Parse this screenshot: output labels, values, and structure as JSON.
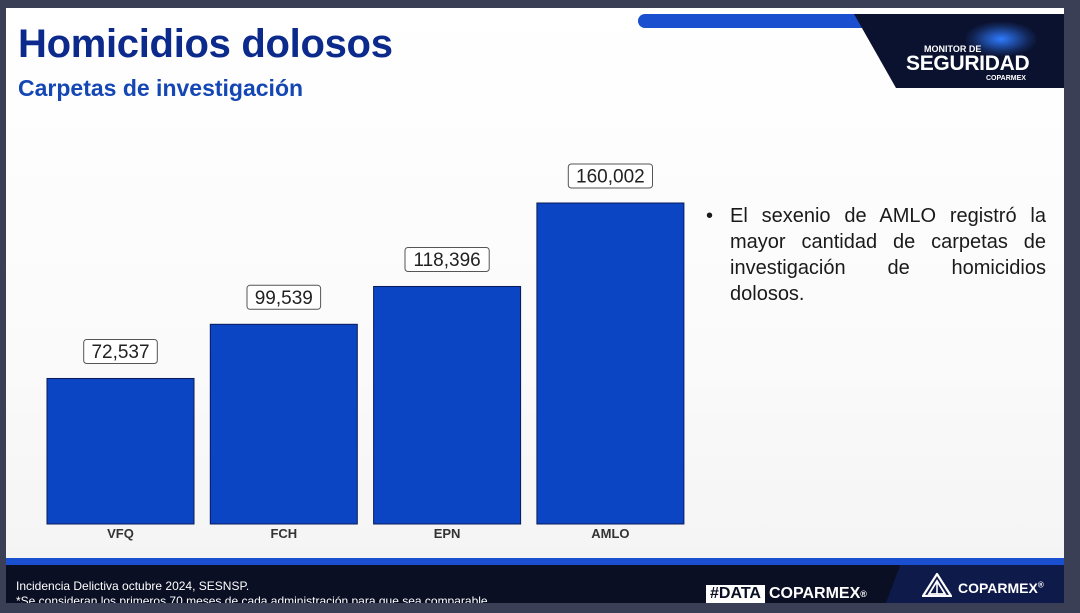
{
  "header": {
    "title": "Homicidios dolosos",
    "subtitle": "Carpetas de investigación"
  },
  "logo": {
    "small": "MONITOR DE",
    "big": "SEGURIDAD",
    "sub": "COPARMEX"
  },
  "chart_data": {
    "type": "bar",
    "categories": [
      "VFQ",
      "FCH",
      "EPN",
      "AMLO"
    ],
    "values": [
      72537,
      99539,
      118396,
      160002
    ],
    "value_labels": [
      "72,537",
      "99,539",
      "118,396",
      "160,002"
    ],
    "title": "",
    "xlabel": "",
    "ylabel": "",
    "ylim": [
      0,
      160002
    ],
    "grid": false,
    "bar_color": "#0b45c4"
  },
  "note": {
    "bullet": "•",
    "text": "El sexenio de AMLO registró la mayor cantidad de carpetas de investigación de homicidios dolosos."
  },
  "footer": {
    "source": "Incidencia Delictiva octubre 2024, SESNSP.",
    "footnote": "*Se consideran los primeros 70 meses de cada administración para que sea comparable.",
    "hashtag_data": "#DATA",
    "hashtag_brand": "COPARMEX",
    "hashtag_mark": "®",
    "brand_name": "COPARMEX",
    "brand_mark": "®"
  }
}
